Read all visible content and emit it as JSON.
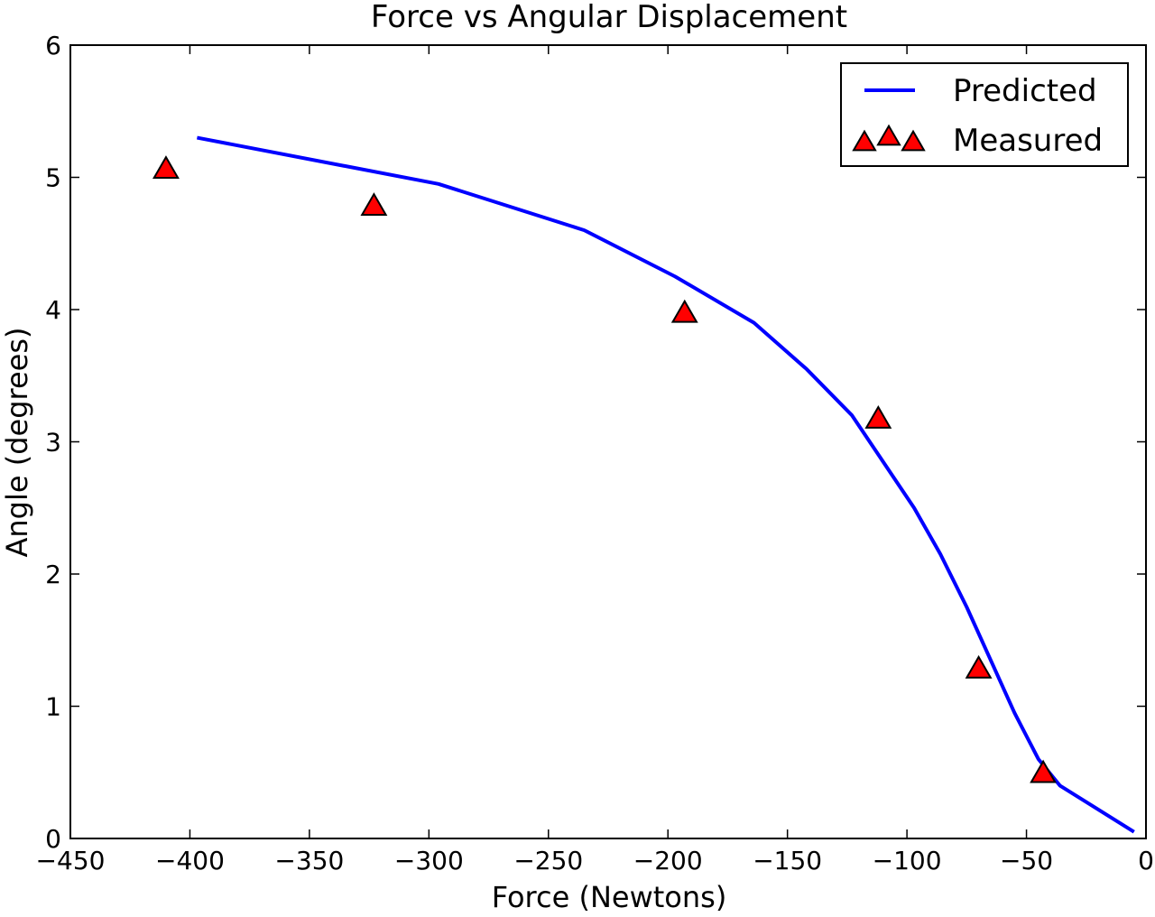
{
  "chart_data": {
    "type": "line",
    "title": "Force vs Angular Displacement",
    "xlabel": "Force (Newtons)",
    "ylabel": "Angle (degrees)",
    "xlim": [
      -450,
      0
    ],
    "ylim": [
      0,
      6
    ],
    "xticks": [
      -450,
      -400,
      -350,
      -300,
      -250,
      -200,
      -150,
      -100,
      -50,
      0
    ],
    "yticks": [
      0,
      1,
      2,
      3,
      4,
      5,
      6
    ],
    "grid": false,
    "legend_position": "top-right",
    "series": [
      {
        "name": "Predicted",
        "kind": "line",
        "color": "#0000ff",
        "x": [
          -397,
          -296,
          -235,
          -197,
          -164,
          -142,
          -123,
          -110,
          -97,
          -86,
          -75,
          -65,
          -55,
          -45,
          -36,
          -5
        ],
        "y": [
          5.3,
          4.95,
          4.6,
          4.25,
          3.9,
          3.55,
          3.2,
          2.85,
          2.5,
          2.15,
          1.75,
          1.35,
          0.95,
          0.6,
          0.4,
          0.05
        ]
      },
      {
        "name": "Measured",
        "kind": "scatter",
        "marker": "triangle",
        "color": "#ff0000",
        "edge_color": "#000000",
        "x": [
          -410,
          -323,
          -193,
          -112,
          -70,
          -43
        ],
        "y": [
          5.06,
          4.78,
          3.97,
          3.17,
          1.28,
          0.49
        ]
      }
    ]
  }
}
